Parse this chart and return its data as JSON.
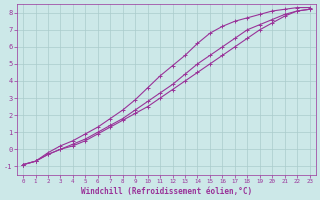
{
  "xlabel": "Windchill (Refroidissement éolien,°C)",
  "background_color": "#cce8e8",
  "line_color": "#993399",
  "grid_color": "#aacccc",
  "xlim": [
    -0.5,
    23.5
  ],
  "ylim": [
    -1.5,
    8.5
  ],
  "yticks": [
    -1,
    0,
    1,
    2,
    3,
    4,
    5,
    6,
    7,
    8
  ],
  "xticks": [
    0,
    1,
    2,
    3,
    4,
    5,
    6,
    7,
    8,
    9,
    10,
    11,
    12,
    13,
    14,
    15,
    16,
    17,
    18,
    19,
    20,
    21,
    22,
    23
  ],
  "line1_x": [
    0,
    1,
    2,
    3,
    4,
    5,
    6,
    7,
    8,
    9,
    10,
    11,
    12,
    13,
    14,
    15,
    16,
    17,
    18,
    19,
    20,
    21,
    22,
    23
  ],
  "line1_y": [
    -0.9,
    -0.7,
    -0.3,
    0.0,
    0.3,
    0.6,
    1.0,
    1.4,
    1.8,
    2.3,
    2.8,
    3.3,
    3.8,
    4.4,
    5.0,
    5.5,
    6.0,
    6.5,
    7.0,
    7.3,
    7.6,
    7.9,
    8.1,
    8.2
  ],
  "line2_x": [
    0,
    1,
    2,
    3,
    4,
    5,
    6,
    7,
    8,
    9,
    10,
    11,
    12,
    13,
    14,
    15,
    16,
    17,
    18,
    19,
    20,
    21,
    22,
    23
  ],
  "line2_y": [
    -0.9,
    -0.7,
    -0.2,
    0.2,
    0.5,
    0.9,
    1.3,
    1.8,
    2.3,
    2.9,
    3.6,
    4.3,
    4.9,
    5.5,
    6.2,
    6.8,
    7.2,
    7.5,
    7.7,
    7.9,
    8.1,
    8.2,
    8.3,
    8.3
  ],
  "line3_x": [
    0,
    1,
    2,
    3,
    4,
    5,
    6,
    7,
    8,
    9,
    10,
    11,
    12,
    13,
    14,
    15,
    16,
    17,
    18,
    19,
    20,
    21,
    22,
    23
  ],
  "line3_y": [
    -0.9,
    -0.7,
    -0.3,
    0.0,
    0.2,
    0.5,
    0.9,
    1.3,
    1.7,
    2.1,
    2.5,
    3.0,
    3.5,
    4.0,
    4.5,
    5.0,
    5.5,
    6.0,
    6.5,
    7.0,
    7.4,
    7.8,
    8.1,
    8.2
  ],
  "marker": "+"
}
